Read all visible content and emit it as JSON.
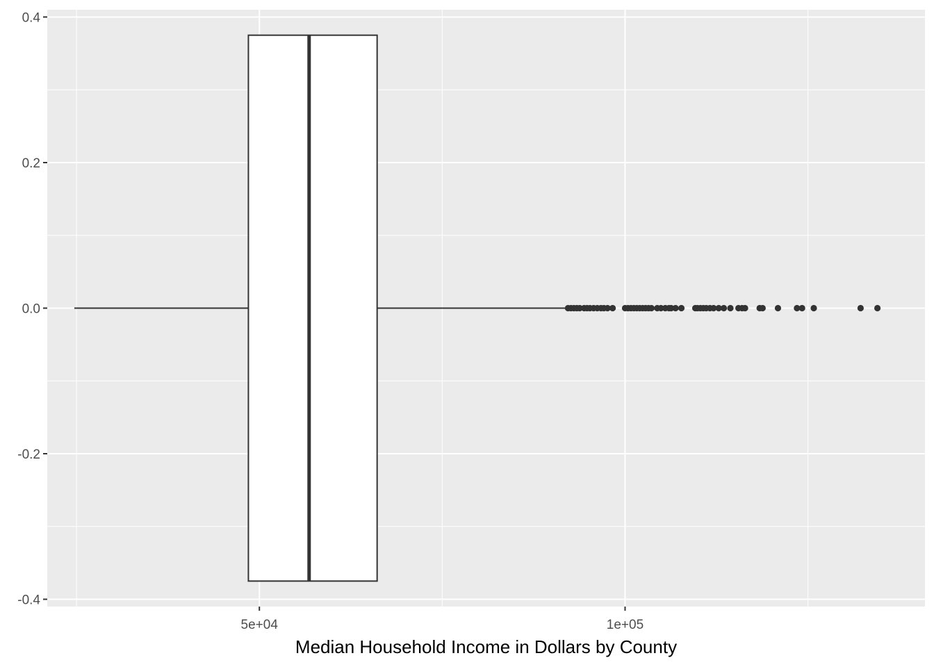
{
  "chart_data": {
    "type": "boxplot",
    "orientation": "horizontal",
    "title": "",
    "xlabel": "Median Household Income in Dollars by County",
    "ylabel": "",
    "xlim": [
      21000,
      141000
    ],
    "ylim": [
      -0.41,
      0.41
    ],
    "x_ticks": [
      {
        "value": 50000,
        "label": "5e+04"
      },
      {
        "value": 100000,
        "label": "1e+05"
      }
    ],
    "x_minor_ticks": [
      25000,
      75000,
      125000
    ],
    "y_ticks": [
      {
        "value": 0.4,
        "label": "0.4"
      },
      {
        "value": 0.2,
        "label": "0.2"
      },
      {
        "value": 0.0,
        "label": "0.0"
      },
      {
        "value": -0.2,
        "label": "-0.2"
      },
      {
        "value": -0.4,
        "label": "-0.4"
      }
    ],
    "y_minor_ticks": [
      0.3,
      0.1,
      -0.1,
      -0.3
    ],
    "box": {
      "whisker_low": 24700,
      "q1": 48500,
      "median": 56800,
      "q3": 66100,
      "whisker_high": 92100,
      "y_low": -0.375,
      "y_high": 0.375
    },
    "outliers": [
      92200,
      92600,
      93000,
      93400,
      93800,
      94400,
      94800,
      95200,
      95700,
      96200,
      96700,
      97100,
      97600,
      98300,
      100000,
      100400,
      100800,
      101200,
      101600,
      102000,
      102400,
      102800,
      103200,
      103600,
      104400,
      104900,
      105500,
      106000,
      106300,
      106900,
      107700,
      109600,
      109900,
      110300,
      110700,
      111100,
      111600,
      112100,
      112800,
      113500,
      114400,
      115500,
      116000,
      116400,
      118400,
      118800,
      120900,
      123500,
      124200,
      125800,
      132200,
      134500
    ],
    "colors": {
      "panel_background": "#ebebeb",
      "grid": "#ffffff",
      "box_fill": "#ffffff",
      "box_line": "#333333",
      "outlier": "#333333",
      "tick_label": "#4d4d4d",
      "axis_title": "#000000"
    },
    "grid": true,
    "legend": "none"
  }
}
